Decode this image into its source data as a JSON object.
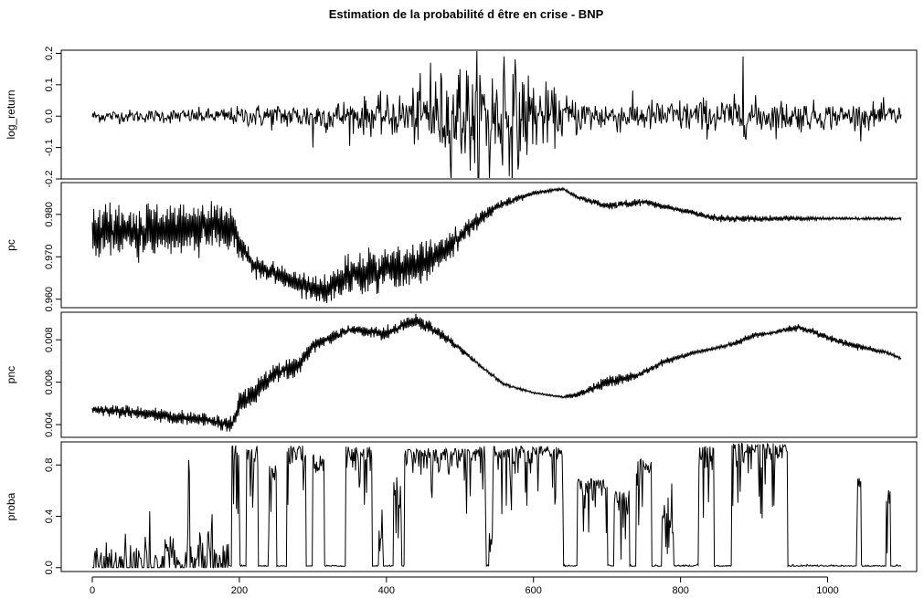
{
  "chart_data": {
    "type": "line",
    "title": "Estimation de la probabilité d être en crise - BNP",
    "x_ticks": [
      0,
      200,
      400,
      600,
      800,
      1000
    ],
    "x_range": [
      0,
      1100
    ],
    "grid": false,
    "legend": "none",
    "line_color": "#000000",
    "panels": [
      {
        "ylabel": "log_return",
        "y_ticks": [
          "-0.2",
          "-0.1",
          "0.0",
          "0.1",
          "0.2"
        ],
        "y_tick_values": [
          -0.2,
          -0.1,
          0.0,
          0.1,
          0.2
        ],
        "ylim": [
          -0.2,
          0.21
        ],
        "x": [
          0,
          40,
          80,
          120,
          160,
          200,
          240,
          280,
          300,
          320,
          360,
          400,
          440,
          460,
          480,
          500,
          520,
          540,
          560,
          580,
          600,
          620,
          640,
          660,
          700,
          740,
          780,
          820,
          860,
          885,
          900,
          940,
          980,
          1020,
          1060,
          1100
        ],
        "values": [
          0.0,
          0.01,
          -0.01,
          0.02,
          -0.02,
          0.01,
          -0.02,
          0.03,
          -0.1,
          0.02,
          -0.04,
          0.05,
          -0.06,
          0.17,
          -0.1,
          0.15,
          -0.15,
          -0.2,
          0.19,
          -0.15,
          0.09,
          -0.08,
          0.05,
          -0.04,
          0.04,
          -0.03,
          0.03,
          -0.05,
          0.04,
          0.19,
          -0.06,
          0.04,
          -0.03,
          0.03,
          -0.02,
          0.02
        ],
        "volatility": [
          0.01,
          0.01,
          0.01,
          0.012,
          0.012,
          0.015,
          0.02,
          0.02,
          0.025,
          0.025,
          0.028,
          0.03,
          0.045,
          0.06,
          0.07,
          0.08,
          0.09,
          0.09,
          0.09,
          0.08,
          0.06,
          0.045,
          0.035,
          0.03,
          0.025,
          0.025,
          0.025,
          0.028,
          0.028,
          0.03,
          0.028,
          0.025,
          0.022,
          0.02,
          0.02,
          0.018
        ]
      },
      {
        "ylabel": "pc",
        "y_ticks": [
          "0.960",
          "0.970",
          "0.980"
        ],
        "y_tick_values": [
          0.96,
          0.97,
          0.98
        ],
        "ylim": [
          0.958,
          0.9875
        ],
        "x": [
          0,
          100,
          150,
          190,
          200,
          220,
          250,
          300,
          320,
          350,
          400,
          450,
          500,
          550,
          600,
          640,
          660,
          700,
          750,
          800,
          850,
          900,
          950,
          1000,
          1050,
          1100
        ],
        "values": [
          0.976,
          0.976,
          0.977,
          0.977,
          0.973,
          0.968,
          0.966,
          0.962,
          0.962,
          0.966,
          0.967,
          0.968,
          0.975,
          0.982,
          0.985,
          0.986,
          0.984,
          0.982,
          0.983,
          0.981,
          0.979,
          0.979,
          0.979,
          0.979,
          0.979,
          0.979
        ],
        "volatility": [
          0.0035,
          0.0035,
          0.0035,
          0.003,
          0.002,
          0.0015,
          0.0015,
          0.002,
          0.0025,
          0.003,
          0.003,
          0.003,
          0.0015,
          0.0008,
          0.0003,
          0.0002,
          0.0003,
          0.0006,
          0.0005,
          0.0003,
          0.0006,
          0.0005,
          0.0004,
          0.0002,
          0.0002,
          0.0002
        ]
      },
      {
        "ylabel": "pnc",
        "y_ticks": [
          "0.004",
          "0.006",
          "0.008"
        ],
        "y_tick_values": [
          0.004,
          0.006,
          0.008
        ],
        "ylim": [
          0.0034,
          0.0093
        ],
        "x": [
          0,
          50,
          100,
          150,
          190,
          200,
          220,
          250,
          280,
          300,
          350,
          400,
          420,
          440,
          460,
          500,
          530,
          560,
          600,
          640,
          660,
          700,
          740,
          780,
          820,
          860,
          880,
          900,
          920,
          960,
          1000,
          1040,
          1080,
          1100
        ],
        "values": [
          0.0047,
          0.0046,
          0.0044,
          0.0042,
          0.004,
          0.0049,
          0.0055,
          0.0064,
          0.0068,
          0.0077,
          0.0085,
          0.0083,
          0.0087,
          0.0089,
          0.0086,
          0.0076,
          0.0067,
          0.0059,
          0.0055,
          0.0053,
          0.0054,
          0.006,
          0.0063,
          0.007,
          0.0074,
          0.0077,
          0.0079,
          0.0082,
          0.0083,
          0.0086,
          0.0081,
          0.0077,
          0.0074,
          0.0071
        ],
        "volatility": [
          0.00015,
          0.0002,
          0.0002,
          0.0002,
          0.0002,
          0.0003,
          0.0003,
          0.0003,
          0.0003,
          0.0002,
          0.00015,
          0.0002,
          0.0002,
          0.0002,
          0.0002,
          0.0001,
          5e-05,
          5e-05,
          3e-05,
          3e-05,
          0.0001,
          0.0002,
          0.0001,
          0.0001,
          5e-05,
          5e-05,
          0.0001,
          0.0001,
          5e-05,
          0.0001,
          0.0001,
          0.0001,
          5e-05,
          5e-05
        ]
      },
      {
        "ylabel": "proba",
        "y_ticks": [
          "0.0",
          "0.4",
          "0.8"
        ],
        "y_tick_values": [
          0.0,
          0.4,
          0.8
        ],
        "ylim": [
          -0.03,
          0.98
        ],
        "segments": [
          {
            "from": 0,
            "to": 130,
            "level": 0.01
          },
          {
            "from": 130,
            "to": 133,
            "level": 0.85
          },
          {
            "from": 133,
            "to": 185,
            "level": 0.02
          },
          {
            "from": 190,
            "to": 200,
            "level": 0.97
          },
          {
            "from": 210,
            "to": 225,
            "level": 0.95
          },
          {
            "from": 240,
            "to": 250,
            "level": 0.8
          },
          {
            "from": 265,
            "to": 290,
            "level": 0.95
          },
          {
            "from": 300,
            "to": 315,
            "level": 0.9
          },
          {
            "from": 345,
            "to": 380,
            "level": 0.95
          },
          {
            "from": 390,
            "to": 395,
            "level": 0.3
          },
          {
            "from": 410,
            "to": 420,
            "level": 0.5
          },
          {
            "from": 425,
            "to": 520,
            "level": 0.93
          },
          {
            "from": 520,
            "to": 535,
            "level": 0.96
          },
          {
            "from": 540,
            "to": 545,
            "level": 0.15
          },
          {
            "from": 545,
            "to": 640,
            "level": 0.95
          },
          {
            "from": 660,
            "to": 700,
            "level": 0.7
          },
          {
            "from": 710,
            "to": 730,
            "level": 0.6
          },
          {
            "from": 740,
            "to": 760,
            "level": 0.85
          },
          {
            "from": 775,
            "to": 790,
            "level": 0.35
          },
          {
            "from": 825,
            "to": 845,
            "level": 0.95
          },
          {
            "from": 870,
            "to": 945,
            "level": 0.97
          },
          {
            "from": 1040,
            "to": 1045,
            "level": 0.7
          },
          {
            "from": 1080,
            "to": 1085,
            "level": 0.65
          }
        ]
      }
    ]
  }
}
